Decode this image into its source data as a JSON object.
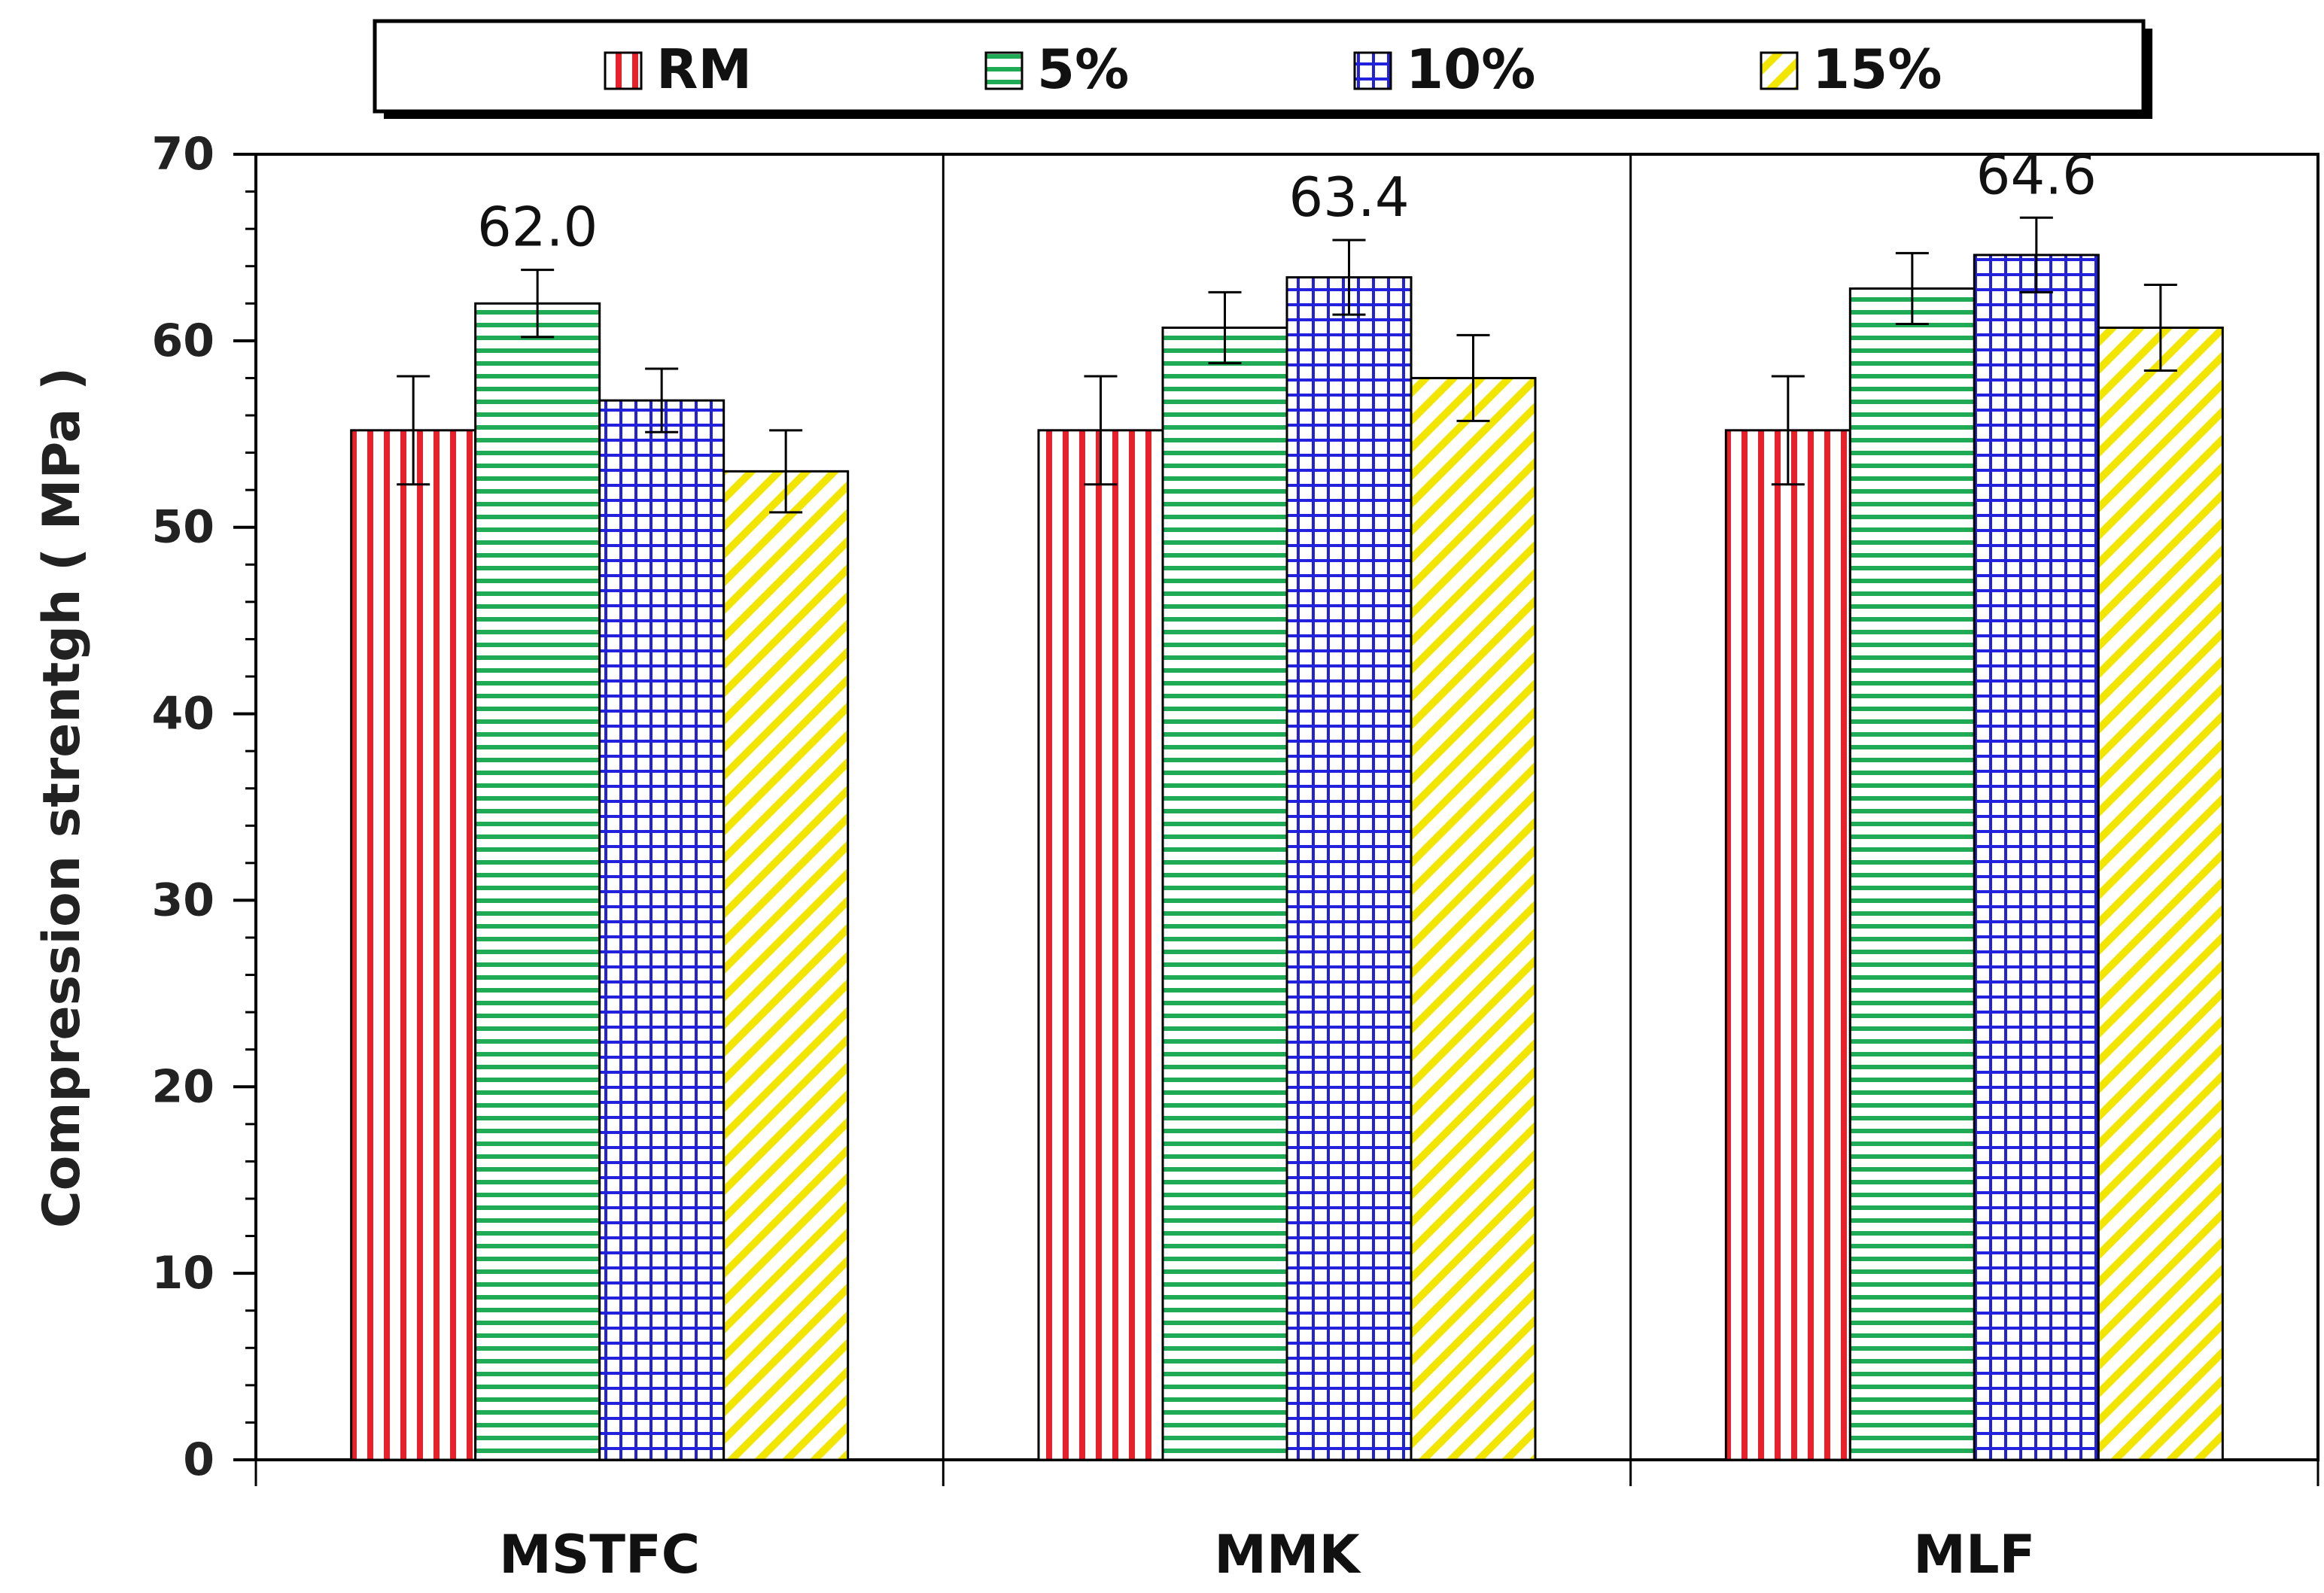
{
  "chart_data": {
    "type": "bar",
    "title": "",
    "xlabel": "",
    "ylabel": "Compression strentgh ( MPa )",
    "ylim": [
      0,
      70
    ],
    "yticks": [
      "0",
      "10",
      "20",
      "30",
      "40",
      "50",
      "60",
      "70"
    ],
    "ytick_values": [
      0,
      10,
      20,
      30,
      40,
      50,
      60,
      70
    ],
    "categories": [
      "MSTFC",
      "MMK",
      "MLF"
    ],
    "legend_position": "top",
    "grid": false,
    "series": [
      {
        "name": "RM",
        "color": "#e8202a",
        "pattern": "vertical",
        "values": [
          55.2,
          55.2,
          55.2
        ],
        "errors": [
          2.9,
          2.9,
          2.9
        ]
      },
      {
        "name": "5%",
        "color": "#1faa55",
        "pattern": "horizontal",
        "values": [
          62.0,
          60.7,
          62.8
        ],
        "errors": [
          1.8,
          1.9,
          1.9
        ]
      },
      {
        "name": "10%",
        "color": "#2222dd",
        "pattern": "grid",
        "values": [
          56.8,
          63.4,
          64.6
        ],
        "errors": [
          1.7,
          2.0,
          2.0
        ]
      },
      {
        "name": "15%",
        "color": "#f2e600",
        "pattern": "diagonal",
        "values": [
          53.0,
          58.0,
          60.7
        ],
        "errors": [
          2.2,
          2.3,
          2.3
        ]
      }
    ],
    "annotations": [
      {
        "category": "MSTFC",
        "series": "5%",
        "text": "62.0"
      },
      {
        "category": "MMK",
        "series": "10%",
        "text": "63.4"
      },
      {
        "category": "MLF",
        "series": "10%",
        "text": "64.6"
      }
    ]
  }
}
